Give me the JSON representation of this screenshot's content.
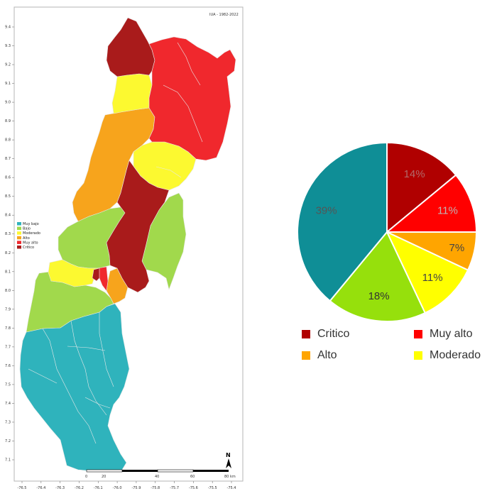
{
  "colors": {
    "critico": "#a91b1b",
    "muy_alto": "#f0282d",
    "alto": "#f7a41c",
    "moderado": "#fcf930",
    "bajo": "#a1d94c",
    "muy_bajo": "#2fb3bc",
    "pie_critico": "#b00000",
    "pie_muy_alto": "#ff0000",
    "pie_alto": "#ffa500",
    "pie_moderado": "#ffff00",
    "pie_bajo": "#96e00c",
    "pie_muy_bajo": "#0f8e96"
  },
  "map": {
    "title": "IUA - 1982-2022",
    "north_label": "N",
    "x_ticks": [
      "-76.5",
      "-76.4",
      "-76.3",
      "-76.2",
      "-76.1",
      "-76.0",
      "-75.9",
      "-75.8",
      "-75.7",
      "-75.6",
      "-75.5",
      "-75.4"
    ],
    "y_ticks": [
      "9.4",
      "9.3",
      "9.2",
      "9.1",
      "9.0",
      "8.9",
      "8.8",
      "8.7",
      "8.6",
      "8.5",
      "8.4",
      "8.3",
      "8.2",
      "8.1",
      "8.0",
      "7.9",
      "7.8",
      "7.7",
      "7.6",
      "7.5",
      "7.4",
      "7.3",
      "7.2",
      "7.1"
    ],
    "scale_labels": [
      "0",
      "20",
      "40",
      "60",
      "80 km"
    ],
    "legend": {
      "items": [
        {
          "label": "Muy bajo",
          "color": "#2fb3bc"
        },
        {
          "label": "Bajo",
          "color": "#a1d94c"
        },
        {
          "label": "Moderado",
          "color": "#fcf930"
        },
        {
          "label": "Alto",
          "color": "#f7a41c"
        },
        {
          "label": "Muy alto",
          "color": "#f0282d"
        },
        {
          "label": "Critico",
          "color": "#a91b1b"
        }
      ]
    }
  },
  "chart_data": {
    "type": "pie",
    "start": "12 o'clock, clockwise",
    "slices": [
      {
        "label": "Critico",
        "value": 14,
        "text": "14%",
        "color": "#b00000",
        "text_color": "#b26a6a"
      },
      {
        "label": "Muy alto",
        "value": 11,
        "text": "11%",
        "color": "#ff0000",
        "text_color": "#c0b4b4"
      },
      {
        "label": "Alto",
        "value": 7,
        "text": "7%",
        "color": "#ffa500",
        "text_color": "#444444"
      },
      {
        "label": "Moderado",
        "value": 11,
        "text": "11%",
        "color": "#ffff00",
        "text_color": "#444444"
      },
      {
        "label": "Bajo",
        "value": 18,
        "text": "18%",
        "color": "#96e00c",
        "text_color": "#333333"
      },
      {
        "label": "Muy bajo",
        "value": 39,
        "text": "39%",
        "color": "#0f8e96",
        "text_color": "#555555"
      }
    ],
    "legend": {
      "placement": "bottom",
      "items": [
        {
          "label": "Critico",
          "color": "#b00000"
        },
        {
          "label": "Muy alto",
          "color": "#ff0000"
        },
        {
          "label": "Alto",
          "color": "#ffa500"
        },
        {
          "label": "Moderado",
          "color": "#ffff00"
        }
      ]
    }
  }
}
